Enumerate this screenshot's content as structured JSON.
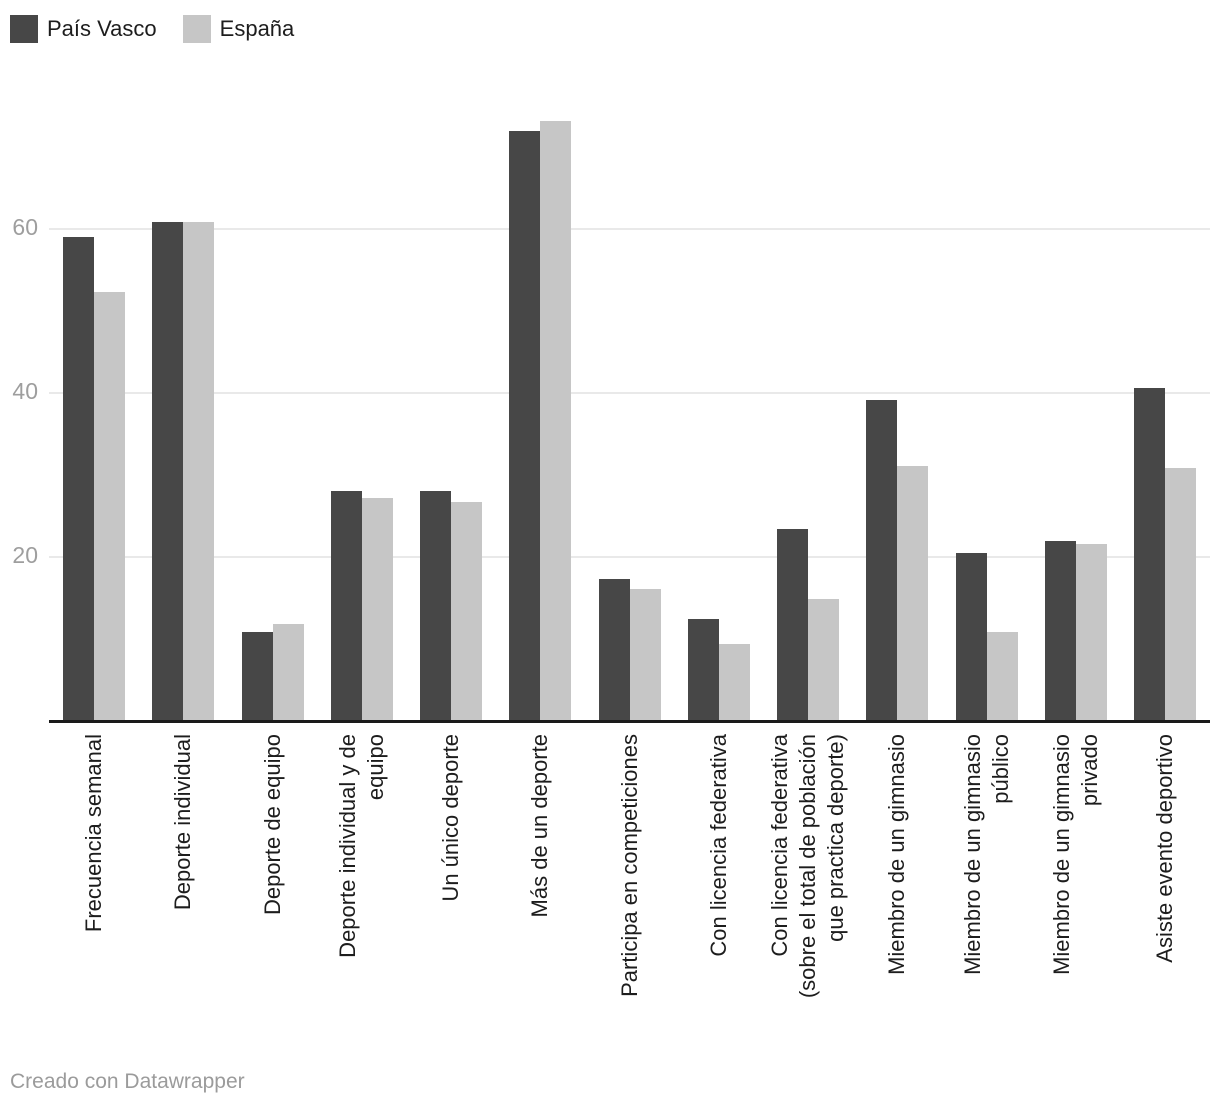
{
  "legend": {
    "items": [
      {
        "label": "País Vasco",
        "color": "#474747"
      },
      {
        "label": "España",
        "color": "#c6c6c6"
      }
    ]
  },
  "footer": {
    "text": "Creado con Datawrapper"
  },
  "chart_data": {
    "type": "bar",
    "title": "",
    "xlabel": "",
    "ylabel": "",
    "categories": [
      "Frecuencia semanal",
      "Deporte individual",
      "Deporte de equipo",
      "Deporte individual y de equipo",
      "Un único deporte",
      "Más de un deporte",
      "Participa en competiciones",
      "Con licencia federativa",
      "Con licencia federativa (sobre el total de población que practica deporte)",
      "Miembro de un gimnasio",
      "Miembro de un gimnasio público",
      "Miembro de un gimnasio privado",
      "Asiste evento deportivo"
    ],
    "category_lines": [
      [
        "Frecuencia semanal"
      ],
      [
        "Deporte individual"
      ],
      [
        "Deporte de equipo"
      ],
      [
        "Deporte individual y de",
        "equipo"
      ],
      [
        "Un único deporte"
      ],
      [
        "Más de un deporte"
      ],
      [
        "Participa en competiciones"
      ],
      [
        "Con licencia federativa"
      ],
      [
        "Con licencia federativa",
        "(sobre el total de población",
        "que practica deporte)"
      ],
      [
        "Miembro de un gimnasio"
      ],
      [
        "Miembro de un gimnasio",
        "público"
      ],
      [
        "Miembro de un gimnasio",
        "privado"
      ],
      [
        "Asiste evento deportivo"
      ]
    ],
    "series": [
      {
        "name": "País Vasco",
        "color": "#474747",
        "values": [
          59.0,
          60.8,
          10.8,
          28.0,
          28.0,
          71.9,
          17.3,
          12.4,
          23.4,
          39.2,
          20.5,
          22.0,
          40.6
        ]
      },
      {
        "name": "España",
        "color": "#c6c6c6",
        "values": [
          52.3,
          60.9,
          11.8,
          27.2,
          26.7,
          73.2,
          16.1,
          9.4,
          14.9,
          31.1,
          10.9,
          21.6,
          30.9
        ]
      }
    ],
    "yticks": [
      20,
      40,
      60
    ],
    "ylim": [
      0,
      78
    ],
    "grid": "horizontal",
    "legend_position": "top-left"
  }
}
